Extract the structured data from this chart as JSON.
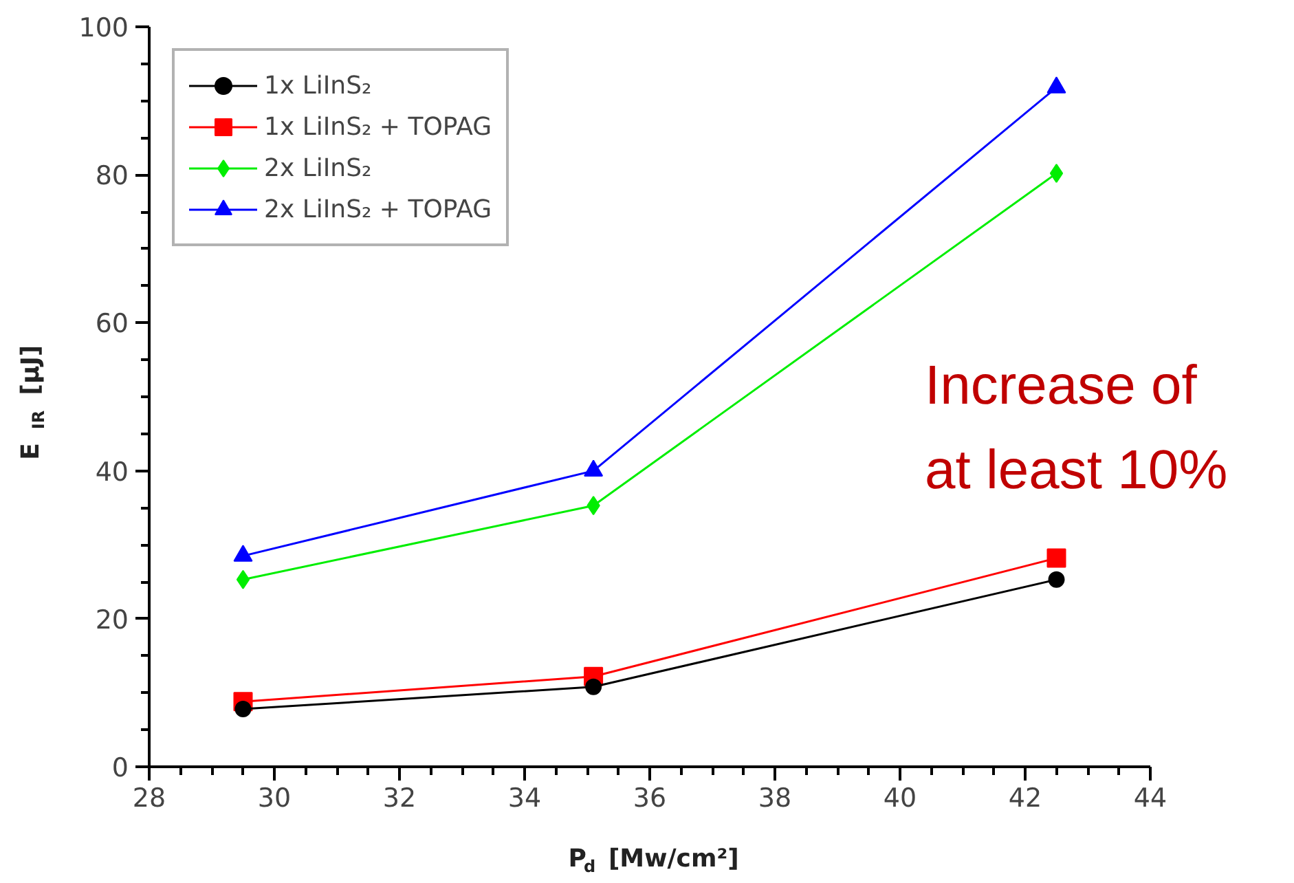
{
  "chart_data": {
    "type": "line",
    "xlabel": "P$_{d}$ [Mw/cm²]",
    "ylabel": "E $_{IR}$ [µJ]",
    "x": [
      29.5,
      35.1,
      42.5
    ],
    "series": [
      {
        "name": "1x LiInS₂",
        "color": "#000000",
        "marker": "circle",
        "values": [
          7.8,
          10.8,
          25.3
        ]
      },
      {
        "name": "1x LiInS₂ + TOPAG",
        "color": "#ff0000",
        "marker": "square",
        "values": [
          8.8,
          12.2,
          28.2
        ]
      },
      {
        "name": "2x LiInS₂",
        "color": "#00ee00",
        "marker": "diamond",
        "values": [
          25.3,
          35.3,
          80.2
        ]
      },
      {
        "name": "2x LiInS₂ + TOPAG",
        "color": "#0000ff",
        "marker": "triangle",
        "values": [
          28.5,
          40.0,
          91.8
        ]
      }
    ],
    "xlim": [
      28,
      44
    ],
    "xticks": [
      28,
      30,
      32,
      34,
      36,
      38,
      40,
      42,
      44
    ],
    "ylim": [
      0,
      100
    ],
    "yticks": [
      0,
      20,
      40,
      60,
      80,
      100
    ],
    "grid": false,
    "legend": "top left",
    "line_style": "solid",
    "annotations": [
      "Increase of\nat least 10%"
    ]
  }
}
